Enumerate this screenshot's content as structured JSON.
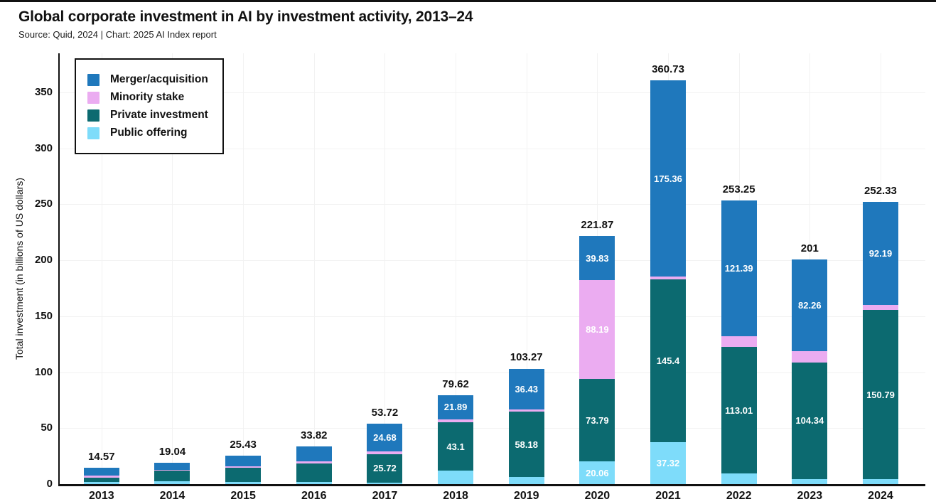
{
  "title": "Global corporate investment in AI by investment activity, 2013–24",
  "source_line": "Source: Quid, 2024 | Chart: 2025 AI Index report",
  "colors": {
    "merger_acquisition": "#1F78BC",
    "minority_stake": "#EBACF1",
    "private_investment": "#0C6A70",
    "public_offering": "#7EDCFA",
    "axis": "#111111",
    "gridline": "#F2F2F2",
    "bar_label": "#FFFFFF",
    "text": "#111111"
  },
  "legend": {
    "items": [
      {
        "label": "Merger/acquisition",
        "color": "#1F78BC"
      },
      {
        "label": "Minority stake",
        "color": "#EBACF1"
      },
      {
        "label": "Private investment",
        "color": "#0C6A70"
      },
      {
        "label": "Public offering",
        "color": "#7EDCFA"
      }
    ]
  },
  "y_axis": {
    "label": "Total investment (in billions of US dollars)",
    "ticks": [
      0,
      50,
      100,
      150,
      200,
      250,
      300,
      350
    ],
    "max": 385
  },
  "chart_data": {
    "type": "bar",
    "stacked": true,
    "title": "Global corporate investment in AI by investment activity, 2013–24",
    "xlabel": "",
    "ylabel": "Total investment (in billions of US dollars)",
    "ylim": [
      0,
      385
    ],
    "grid": true,
    "legend_position": "top-left-inside",
    "categories": [
      "2013",
      "2014",
      "2015",
      "2016",
      "2017",
      "2018",
      "2019",
      "2020",
      "2021",
      "2022",
      "2023",
      "2024"
    ],
    "series": [
      {
        "name": "Public offering",
        "color": "#7EDCFA",
        "values": [
          1.77,
          2.3,
          2.13,
          1.72,
          1.3,
          11.9,
          6.4,
          20.06,
          37.32,
          9.43,
          4.4,
          4.65
        ],
        "labels": [
          "",
          "",
          "",
          "",
          "",
          "",
          "",
          "20.06",
          "37.32",
          "",
          "",
          ""
        ]
      },
      {
        "name": "Private investment",
        "color": "#0C6A70",
        "values": [
          4.2,
          10.14,
          12.2,
          17.0,
          25.72,
          43.1,
          58.18,
          73.79,
          145.4,
          113.01,
          104.34,
          150.79
        ],
        "labels": [
          "",
          "",
          "",
          "",
          "25.72",
          "43.1",
          "58.18",
          "73.79",
          "145.4",
          "113.01",
          "104.34",
          "150.79"
        ]
      },
      {
        "name": "Minority stake",
        "color": "#EBACF1",
        "values": [
          1.7,
          0.3,
          1.7,
          1.7,
          2.02,
          2.73,
          2.26,
          88.19,
          2.65,
          9.42,
          10.0,
          4.7
        ],
        "labels": [
          "",
          "",
          "",
          "",
          "",
          "",
          "",
          "88.19",
          "",
          "",
          "",
          ""
        ]
      },
      {
        "name": "Merger/acquisition",
        "color": "#1F78BC",
        "values": [
          6.9,
          6.3,
          9.4,
          13.4,
          24.68,
          21.89,
          36.43,
          39.83,
          175.36,
          121.39,
          82.26,
          92.19
        ],
        "labels": [
          "",
          "",
          "",
          "",
          "24.68",
          "21.89",
          "36.43",
          "39.83",
          "175.36",
          "121.39",
          "82.26",
          "92.19"
        ]
      }
    ],
    "totals": [
      "14.57",
      "19.04",
      "25.43",
      "33.82",
      "53.72",
      "79.62",
      "103.27",
      "221.87",
      "360.73",
      "253.25",
      "201",
      "252.33"
    ]
  }
}
